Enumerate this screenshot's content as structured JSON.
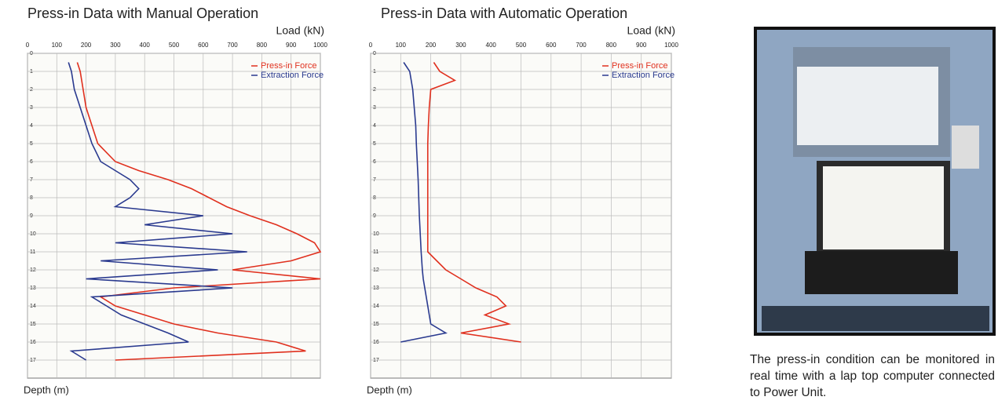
{
  "chart_data": [
    {
      "type": "line",
      "title": "Press-in Data with Manual Operation",
      "x_label": "Load (kN)",
      "y_label": "Depth (m)",
      "xlim": [
        0,
        1000
      ],
      "xticks": [
        0,
        100,
        200,
        300,
        400,
        500,
        600,
        700,
        800,
        900,
        1000
      ],
      "ylim": [
        0,
        18
      ],
      "yticks": [
        0,
        1,
        2,
        3,
        4,
        5,
        6,
        7,
        8,
        9,
        10,
        11,
        12,
        13,
        14,
        15,
        16,
        17
      ],
      "grid": true,
      "y": [
        0.5,
        1,
        2,
        3,
        4,
        5,
        6,
        6.5,
        7,
        7.5,
        8,
        8.5,
        9,
        9.5,
        10,
        10.5,
        11,
        11.5,
        12,
        12.5,
        13,
        13.5,
        14,
        14.5,
        15,
        15.5,
        16,
        16.5,
        17
      ],
      "series": [
        {
          "name": "Press-in Force",
          "color": "#e0301e",
          "values": [
            170,
            180,
            190,
            200,
            220,
            240,
            300,
            380,
            480,
            560,
            620,
            680,
            760,
            850,
            920,
            980,
            1000,
            900,
            700,
            1000,
            500,
            250,
            300,
            400,
            500,
            650,
            850,
            950,
            300
          ]
        },
        {
          "name": "Extraction Force",
          "color": "#2a3a8f",
          "values": [
            140,
            150,
            160,
            180,
            200,
            220,
            250,
            300,
            350,
            380,
            350,
            300,
            600,
            400,
            700,
            300,
            750,
            250,
            650,
            200,
            700,
            220,
            270,
            320,
            400,
            480,
            550,
            150,
            200
          ]
        }
      ]
    },
    {
      "type": "line",
      "title": "Press-in Data with Automatic Operation",
      "x_label": "Load (kN)",
      "y_label": "Depth (m)",
      "xlim": [
        0,
        1000
      ],
      "xticks": [
        0,
        100,
        200,
        300,
        400,
        500,
        600,
        700,
        800,
        900,
        1000
      ],
      "ylim": [
        0,
        18
      ],
      "yticks": [
        0,
        1,
        2,
        3,
        4,
        5,
        6,
        7,
        8,
        9,
        10,
        11,
        12,
        13,
        14,
        15,
        16,
        17
      ],
      "grid": true,
      "y": [
        0.5,
        1,
        1.5,
        2,
        3,
        4,
        5,
        6,
        7,
        8,
        9,
        10,
        11,
        11.5,
        12,
        12.5,
        13,
        13.5,
        14,
        14.5,
        15,
        15.5,
        16
      ],
      "series": [
        {
          "name": "Press-in Force",
          "color": "#e0301e",
          "values": [
            210,
            230,
            280,
            200,
            195,
            192,
            190,
            190,
            190,
            190,
            190,
            190,
            190,
            220,
            250,
            300,
            350,
            420,
            450,
            380,
            460,
            300,
            500
          ]
        },
        {
          "name": "Extraction Force",
          "color": "#2a3a8f",
          "values": [
            110,
            130,
            135,
            140,
            145,
            150,
            152,
            155,
            158,
            160,
            162,
            165,
            168,
            170,
            172,
            175,
            180,
            185,
            190,
            195,
            200,
            250,
            100
          ]
        }
      ]
    }
  ],
  "caption": "The press-in condition can be monitored in real time with a lap top computer connected to Power Unit."
}
